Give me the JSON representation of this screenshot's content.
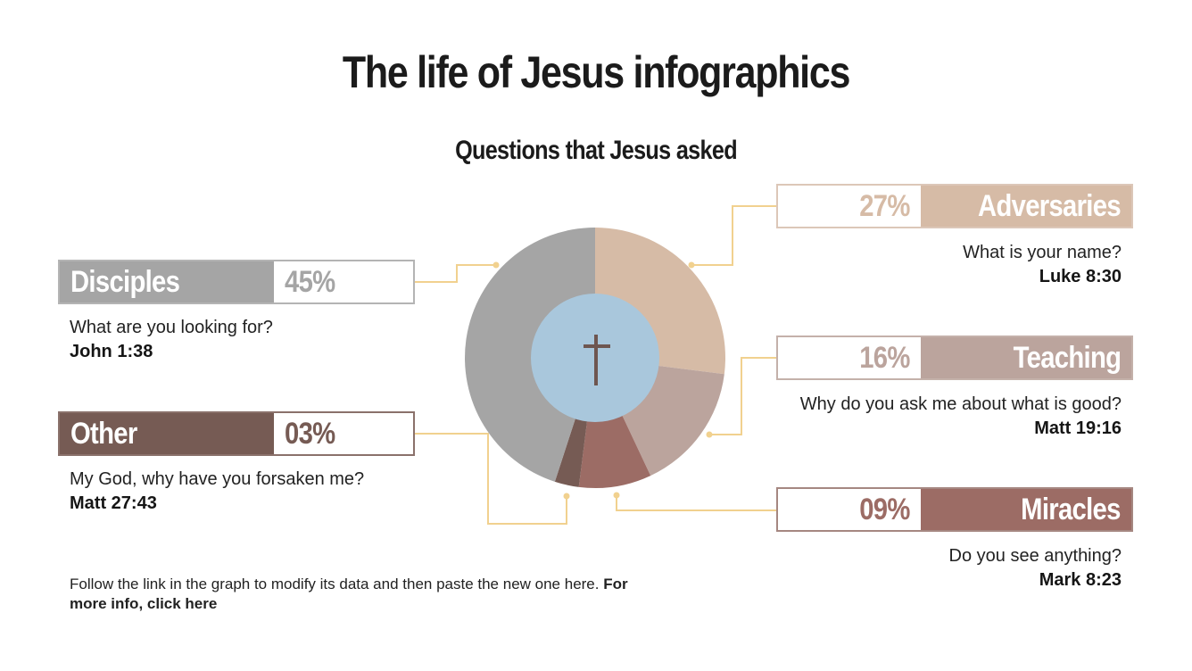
{
  "header": {
    "title": "The life of Jesus infographics",
    "subtitle": "Questions that Jesus asked"
  },
  "colors": {
    "disciples": "#a5a5a5",
    "adversaries": "#d6bba6",
    "teaching": "#bba49d",
    "miracles": "#9c6c65",
    "other": "#765b54",
    "center": "#a9c7dc",
    "cross": "#6e5650",
    "connector": "#f1d18f"
  },
  "categories": {
    "disciples": {
      "label": "Disciples",
      "percent": "45%",
      "question": "What are you looking for?",
      "reference": "John 1:38"
    },
    "other": {
      "label": "Other",
      "percent": "03%",
      "question": "My God, why have you forsaken me?",
      "reference": "Matt 27:43"
    },
    "adversaries": {
      "label": "Adversaries",
      "percent": "27%",
      "question": "What is your name?",
      "reference": "Luke 8:30"
    },
    "teaching": {
      "label": "Teaching",
      "percent": "16%",
      "question": "Why do you ask me about what is good?",
      "reference": "Matt 19:16"
    },
    "miracles": {
      "label": "Miracles",
      "percent": "09%",
      "question": "Do you see anything?",
      "reference": "Mark 8:23"
    }
  },
  "footer": {
    "text": "Follow the link in the graph to modify its data and then paste  the new one here. ",
    "link": "For more info, click here"
  },
  "center_icon": "cross-icon",
  "chart_data": {
    "type": "pie",
    "title": "Questions that Jesus asked",
    "subtitle": "The life of Jesus infographics",
    "categories": [
      "Adversaries",
      "Teaching",
      "Miracles",
      "Other",
      "Disciples"
    ],
    "values": [
      27,
      16,
      9,
      3,
      45
    ],
    "unit": "%",
    "donut": true,
    "start_angle": "12 o'clock, clockwise",
    "annotations": [
      {
        "category": "Disciples",
        "question": "What are you looking for?",
        "reference": "John 1:38"
      },
      {
        "category": "Adversaries",
        "question": "What is your name?",
        "reference": "Luke 8:30"
      },
      {
        "category": "Teaching",
        "question": "Why do you ask me about what is good?",
        "reference": "Matt 19:16"
      },
      {
        "category": "Miracles",
        "question": "Do you see anything?",
        "reference": "Mark 8:23"
      },
      {
        "category": "Other",
        "question": "My God, why have you forsaken me?",
        "reference": "Matt 27:43"
      }
    ]
  }
}
